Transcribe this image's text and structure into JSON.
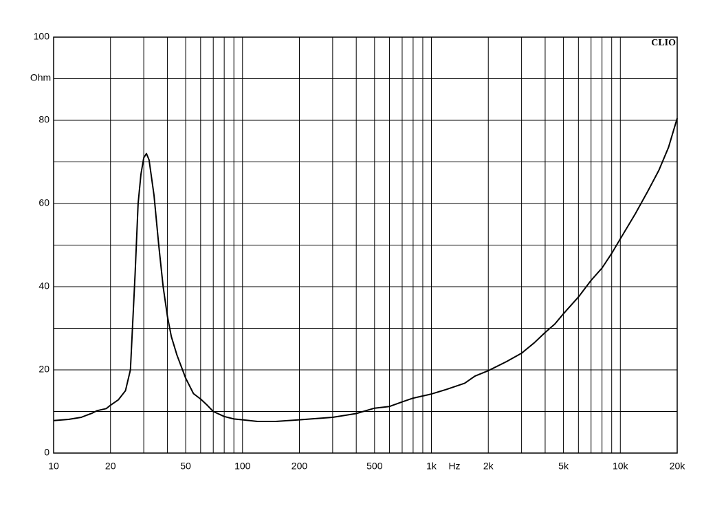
{
  "chart_data": {
    "type": "line",
    "y_unit": "Ohm",
    "x_unit": "Hz",
    "brand": "CLIO",
    "log_x": true,
    "grid": true,
    "xlim": [
      10,
      20000
    ],
    "ylim": [
      0,
      100
    ],
    "xticks": [
      10,
      20,
      50,
      100,
      200,
      500,
      {
        "value": 1000,
        "label": "1k"
      },
      {
        "value": 2000,
        "label": "2k"
      },
      {
        "value": 5000,
        "label": "5k"
      },
      {
        "value": 10000,
        "label": "10k"
      },
      {
        "value": 20000,
        "label": "20k"
      }
    ],
    "x_minor_ticks": [
      30,
      40,
      60,
      70,
      80,
      90,
      300,
      400,
      600,
      700,
      800,
      900,
      3000,
      4000,
      6000,
      7000,
      8000,
      9000
    ],
    "yticks": [
      0,
      20,
      40,
      60,
      80,
      100
    ],
    "y_minor_ticks": [
      10,
      30,
      50,
      70,
      90
    ],
    "series": [
      {
        "color": "#000000",
        "x": [
          10,
          12,
          14,
          16,
          17,
          19,
          20,
          22,
          24,
          25.5,
          27,
          28,
          29,
          30,
          31,
          32,
          34,
          36,
          38,
          40,
          42,
          45,
          50,
          55,
          60,
          65,
          70,
          80,
          90,
          100,
          120,
          150,
          200,
          300,
          400,
          500,
          600,
          700,
          800,
          1000,
          1200,
          1500,
          1700,
          2000,
          2500,
          3000,
          3500,
          4000,
          4500,
          5000,
          6000,
          7000,
          8000,
          9000,
          10000,
          12000,
          14000,
          16000,
          18000,
          20000
        ],
        "values": [
          7.8,
          8.1,
          8.6,
          9.6,
          10.2,
          10.7,
          11.5,
          12.8,
          15,
          20,
          43,
          60,
          67,
          71,
          72,
          70.5,
          62,
          50,
          40,
          33,
          28,
          23.5,
          18,
          14.3,
          13,
          11.5,
          10,
          8.8,
          8.2,
          8,
          7.6,
          7.6,
          8,
          8.6,
          9.5,
          10.8,
          11.2,
          12.3,
          13.2,
          14.2,
          15.3,
          16.8,
          18.5,
          19.8,
          22,
          24,
          26.5,
          29,
          31,
          33.5,
          37.5,
          41.5,
          44.5,
          48,
          51.5,
          57.5,
          63,
          68,
          73.5,
          80.5
        ]
      }
    ]
  }
}
